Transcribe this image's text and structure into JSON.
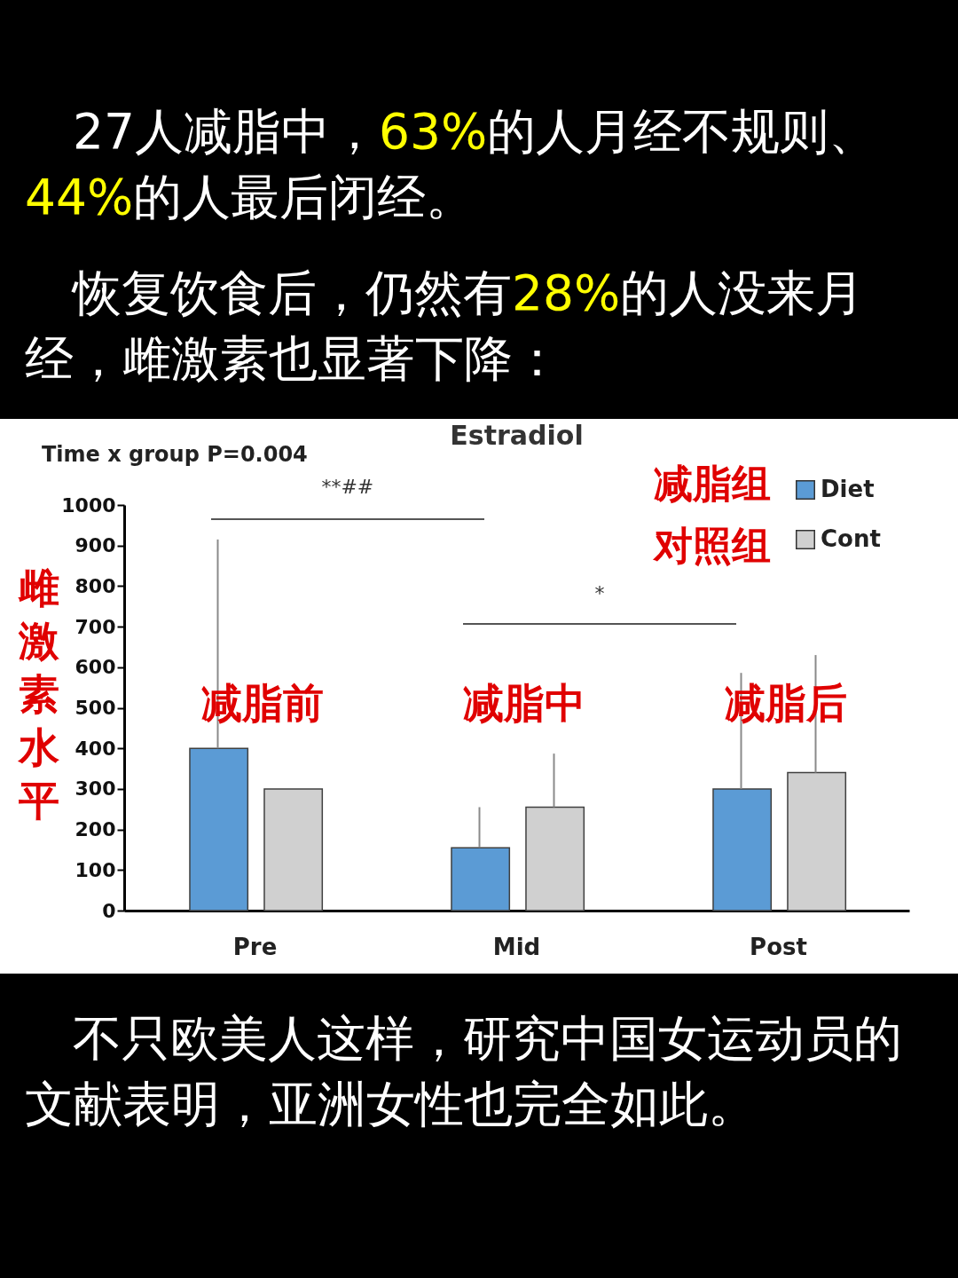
{
  "chart_data": {
    "type": "bar",
    "title": "Estradiol",
    "ylabel": "雌激素水平",
    "categories": [
      "Pre",
      "Mid",
      "Post"
    ],
    "series": [
      {
        "name": "Diet",
        "color": "#5b9bd5",
        "values": [
          400,
          155,
          300
        ],
        "errors": [
          515,
          100,
          286
        ]
      },
      {
        "name": "Cont",
        "color": "#d0d0d0",
        "values": [
          300,
          255,
          340
        ],
        "errors": [
          null,
          132,
          290
        ]
      }
    ],
    "ylim": [
      0,
      1000
    ],
    "yticks": [
      0,
      100,
      200,
      300,
      400,
      500,
      600,
      700,
      800,
      900,
      1000
    ],
    "grid": false,
    "legend": "top right",
    "annotations": [
      "27人减脂中，63%的人月经不规则、44%的人最后闭经。",
      "恢复饮食后，仍然有28%的人没来月经，雌激素也显著下降：",
      "Time x group P=0.004",
      "**##",
      "*",
      "减脂前",
      "减脂中",
      "减脂后",
      "减脂组",
      "对照组",
      "不只欧美人这样，研究中国女运动员的文献表明，亚洲女性也完全如此。"
    ]
  }
}
